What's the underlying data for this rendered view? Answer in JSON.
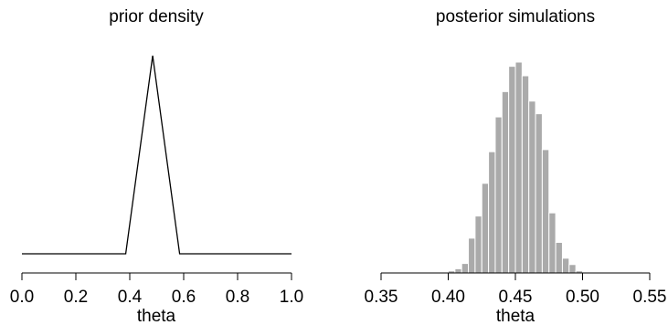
{
  "chart_data": [
    {
      "type": "line",
      "title": "prior density",
      "xlabel": "theta",
      "ylabel": "",
      "xlim": [
        0.0,
        1.0
      ],
      "xticks": [
        "0.0",
        "0.2",
        "0.4",
        "0.6",
        "0.8",
        "1.0"
      ],
      "xtick_values": [
        0.0,
        0.2,
        0.4,
        0.6,
        0.8,
        1.0
      ],
      "y_axis_shown": false,
      "x": [
        0.0,
        0.385,
        0.485,
        0.585,
        1.0
      ],
      "y": [
        0.0,
        0.0,
        1.0,
        0.0,
        0.0
      ],
      "line_color": "#000000"
    },
    {
      "type": "bar",
      "title": "posterior simulations",
      "xlabel": "theta",
      "ylabel": "",
      "xlim": [
        0.35,
        0.55
      ],
      "xticks": [
        "0.35",
        "0.40",
        "0.45",
        "0.50",
        "0.55"
      ],
      "xtick_values": [
        0.35,
        0.4,
        0.45,
        0.5,
        0.55
      ],
      "y_axis_shown": false,
      "bin_width": 0.005,
      "bin_starts": [
        0.395,
        0.4,
        0.405,
        0.41,
        0.415,
        0.42,
        0.425,
        0.43,
        0.435,
        0.44,
        0.445,
        0.45,
        0.455,
        0.46,
        0.465,
        0.47,
        0.475,
        0.48,
        0.485,
        0.49,
        0.495
      ],
      "values": [
        0.3,
        1.0,
        2.0,
        4.5,
        16.5,
        27.0,
        42.5,
        57.5,
        74.0,
        86.0,
        98.0,
        100.0,
        93.5,
        81.5,
        75.5,
        58.5,
        28.5,
        14.5,
        7.0,
        4.0,
        1.0
      ],
      "bar_color": "#aaaaaa"
    }
  ]
}
